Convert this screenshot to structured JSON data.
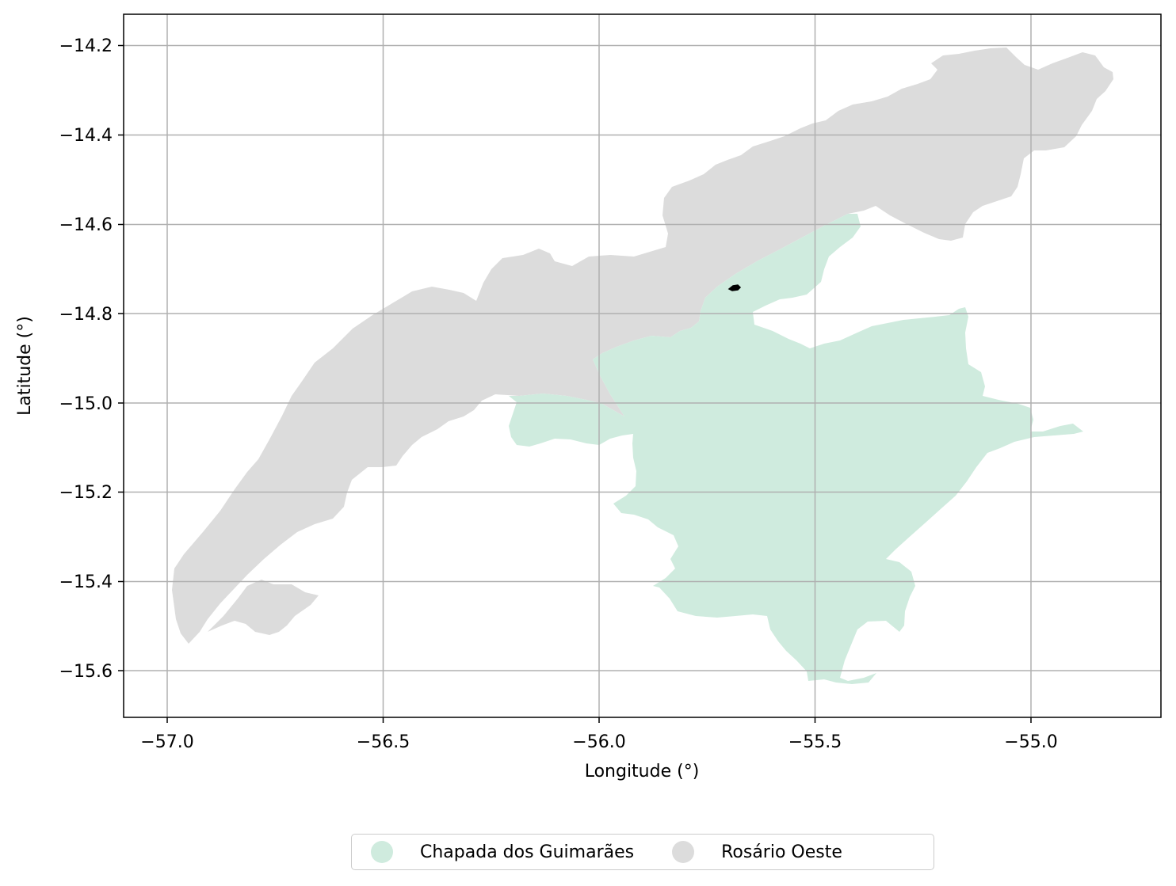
{
  "map": {
    "xlabel": "Longitude (°)",
    "ylabel": "Latitude (°)",
    "x_ticks": [
      "−57.0",
      "−56.5",
      "−56.0",
      "−55.5",
      "−55.0"
    ],
    "y_ticks": [
      "−14.2",
      "−14.4",
      "−14.6",
      "−14.8",
      "−15.0",
      "−15.2",
      "−15.4",
      "−15.6"
    ],
    "xlim": [
      -57.1,
      -54.7
    ],
    "ylim": [
      -15.7,
      -14.13
    ],
    "grid": true,
    "legend_position": "bottom-center",
    "regions": [
      {
        "name": "Chapada dos Guimarães",
        "color": "#cfebde"
      },
      {
        "name": "Rosário Oeste",
        "color": "#dcdcdc"
      }
    ],
    "marker_color": "#000000"
  }
}
